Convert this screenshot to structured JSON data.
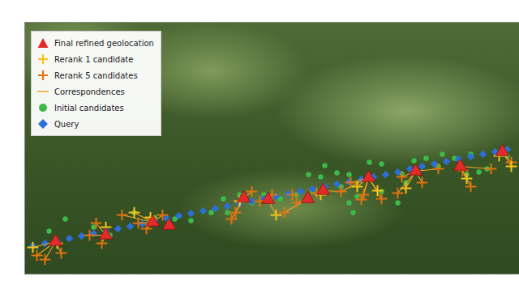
{
  "chart_data": {
    "type": "scatter",
    "xlim": [
      30,
      640
    ],
    "ylim": [
      338,
      27
    ],
    "tick_labels": false,
    "legend": "top-left",
    "series": [
      {
        "name": "Final refined geolocation",
        "type": "scatter",
        "marker": "triangle",
        "color": "#e32b2b",
        "values": [
          [
            68,
            298
          ],
          [
            130,
            290
          ],
          [
            188,
            274
          ],
          [
            208,
            278
          ],
          [
            300,
            244
          ],
          [
            330,
            246
          ],
          [
            379,
            245
          ],
          [
            398,
            235
          ],
          [
            454,
            219
          ],
          [
            512,
            211
          ],
          [
            567,
            205
          ],
          [
            619,
            187
          ]
        ]
      },
      {
        "name": "Rerank 1 candidate",
        "type": "scatter",
        "marker": "plus",
        "color": "#f7c31a",
        "values": [
          [
            40,
            305
          ],
          [
            70,
            300
          ],
          [
            130,
            280
          ],
          [
            165,
            262
          ],
          [
            185,
            268
          ],
          [
            295,
            248
          ],
          [
            340,
            265
          ],
          [
            395,
            240
          ],
          [
            440,
            230
          ],
          [
            465,
            235
          ],
          [
            500,
            232
          ],
          [
            575,
            220
          ],
          [
            615,
            192
          ],
          [
            630,
            205
          ]
        ]
      },
      {
        "name": "Rerank 5 candidates",
        "type": "scatter",
        "marker": "plus",
        "color": "#e0730f",
        "values": [
          [
            45,
            315
          ],
          [
            55,
            320
          ],
          [
            75,
            312
          ],
          [
            110,
            290
          ],
          [
            118,
            275
          ],
          [
            125,
            300
          ],
          [
            150,
            265
          ],
          [
            170,
            275
          ],
          [
            180,
            282
          ],
          [
            200,
            265
          ],
          [
            285,
            270
          ],
          [
            290,
            262
          ],
          [
            310,
            236
          ],
          [
            320,
            248
          ],
          [
            335,
            240
          ],
          [
            350,
            262
          ],
          [
            360,
            240
          ],
          [
            365,
            250
          ],
          [
            390,
            238
          ],
          [
            420,
            236
          ],
          [
            432,
            225
          ],
          [
            445,
            246
          ],
          [
            448,
            240
          ],
          [
            470,
            245
          ],
          [
            490,
            238
          ],
          [
            495,
            218
          ],
          [
            520,
            225
          ],
          [
            540,
            208
          ],
          [
            570,
            210
          ],
          [
            580,
            230
          ],
          [
            605,
            208
          ],
          [
            630,
            200
          ]
        ]
      },
      {
        "name": "Correspondences",
        "type": "segment",
        "line_style": "solid",
        "color": "#f2a529",
        "values": [
          [
            68,
            298,
            40,
            305
          ],
          [
            68,
            298,
            55,
            320
          ],
          [
            68,
            298,
            75,
            312
          ],
          [
            68,
            298,
            45,
            315
          ],
          [
            130,
            290,
            125,
            300
          ],
          [
            130,
            290,
            110,
            290
          ],
          [
            130,
            290,
            118,
            275
          ],
          [
            188,
            274,
            165,
            262
          ],
          [
            188,
            274,
            150,
            265
          ],
          [
            188,
            274,
            170,
            275
          ],
          [
            188,
            274,
            200,
            265
          ],
          [
            188,
            274,
            180,
            282
          ],
          [
            300,
            244,
            285,
            270
          ],
          [
            300,
            244,
            290,
            262
          ],
          [
            300,
            244,
            310,
            236
          ],
          [
            330,
            246,
            340,
            265
          ],
          [
            330,
            246,
            335,
            240
          ],
          [
            330,
            246,
            320,
            248
          ],
          [
            379,
            245,
            350,
            262
          ],
          [
            379,
            245,
            365,
            250
          ],
          [
            398,
            235,
            390,
            238
          ],
          [
            398,
            235,
            420,
            236
          ],
          [
            454,
            219,
            432,
            225
          ],
          [
            454,
            219,
            440,
            230
          ],
          [
            454,
            219,
            445,
            246
          ],
          [
            454,
            219,
            465,
            235
          ],
          [
            454,
            219,
            470,
            245
          ],
          [
            454,
            219,
            448,
            240
          ],
          [
            454,
            219,
            420,
            236
          ],
          [
            512,
            211,
            495,
            218
          ],
          [
            512,
            211,
            500,
            232
          ],
          [
            512,
            211,
            490,
            238
          ],
          [
            512,
            211,
            520,
            225
          ],
          [
            512,
            211,
            540,
            208
          ],
          [
            567,
            205,
            575,
            220
          ],
          [
            567,
            205,
            580,
            230
          ],
          [
            567,
            205,
            570,
            210
          ],
          [
            567,
            205,
            605,
            208
          ],
          [
            619,
            187,
            630,
            200
          ],
          [
            619,
            187,
            630,
            205
          ]
        ]
      },
      {
        "name": "Initial candidates",
        "type": "scatter",
        "marker": "circle",
        "color": "#3dbb4a",
        "values": [
          [
            60,
            285
          ],
          [
            80,
            270
          ],
          [
            115,
            280
          ],
          [
            135,
            290
          ],
          [
            165,
            262
          ],
          [
            190,
            268
          ],
          [
            215,
            270
          ],
          [
            235,
            272
          ],
          [
            260,
            262
          ],
          [
            280,
            262
          ],
          [
            295,
            240
          ],
          [
            310,
            250
          ],
          [
            325,
            240
          ],
          [
            345,
            245
          ],
          [
            365,
            240
          ],
          [
            385,
            236
          ],
          [
            400,
            204
          ],
          [
            415,
            213
          ],
          [
            430,
            215
          ],
          [
            435,
            262
          ],
          [
            455,
            200
          ],
          [
            470,
            202
          ],
          [
            430,
            250
          ],
          [
            440,
            242
          ],
          [
            470,
            236
          ],
          [
            490,
            250
          ],
          [
            495,
            214
          ],
          [
            510,
            198
          ],
          [
            525,
            195
          ],
          [
            540,
            205
          ],
          [
            560,
            195
          ],
          [
            575,
            215
          ],
          [
            590,
            212
          ],
          [
            600,
            208
          ],
          [
            625,
            192
          ],
          [
            275,
            245
          ],
          [
            395,
            218
          ],
          [
            380,
            215
          ],
          [
            420,
            230
          ],
          [
            500,
            225
          ],
          [
            545,
            190
          ],
          [
            580,
            190
          ]
        ]
      },
      {
        "name": "Query",
        "type": "scatter",
        "marker": "diamond",
        "color": "#2d6fd8",
        "values": [
          [
            40,
            303
          ],
          [
            55,
            300
          ],
          [
            70,
            297
          ],
          [
            85,
            294
          ],
          [
            100,
            291
          ],
          [
            115,
            288
          ],
          [
            130,
            285
          ],
          [
            145,
            282
          ],
          [
            160,
            279
          ],
          [
            175,
            276
          ],
          [
            190,
            273
          ],
          [
            205,
            269
          ],
          [
            220,
            266
          ],
          [
            235,
            263
          ],
          [
            250,
            260
          ],
          [
            265,
            257
          ],
          [
            280,
            254
          ],
          [
            295,
            251
          ],
          [
            310,
            248
          ],
          [
            325,
            245
          ],
          [
            340,
            242
          ],
          [
            355,
            239
          ],
          [
            370,
            236
          ],
          [
            385,
            233
          ],
          [
            400,
            230
          ],
          [
            415,
            227
          ],
          [
            430,
            224
          ],
          [
            445,
            221
          ],
          [
            460,
            218
          ],
          [
            475,
            215
          ],
          [
            490,
            212
          ],
          [
            505,
            208
          ],
          [
            520,
            205
          ],
          [
            535,
            202
          ],
          [
            550,
            199
          ],
          [
            565,
            196
          ],
          [
            580,
            193
          ],
          [
            595,
            190
          ],
          [
            610,
            187
          ],
          [
            625,
            184
          ]
        ]
      }
    ]
  }
}
